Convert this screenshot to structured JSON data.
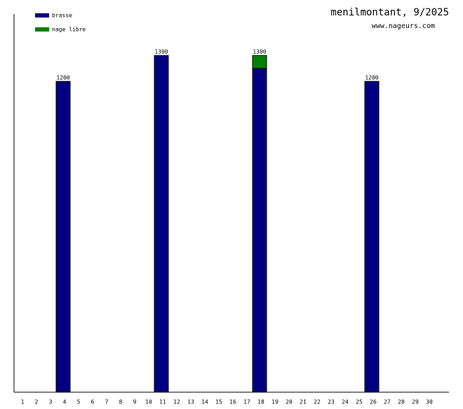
{
  "chart_data": {
    "type": "stacked-bar",
    "title": "menilmontant, 9/2025",
    "subtitle": "www.nageurs.com",
    "categories": [
      "1",
      "2",
      "3",
      "4",
      "5",
      "6",
      "7",
      "8",
      "9",
      "10",
      "11",
      "12",
      "13",
      "14",
      "15",
      "16",
      "17",
      "18",
      "19",
      "20",
      "21",
      "22",
      "23",
      "24",
      "25",
      "26",
      "27",
      "28",
      "29",
      "30"
    ],
    "series": [
      {
        "name": "brasse",
        "color": "#000080",
        "values": [
          null,
          null,
          null,
          1200,
          null,
          null,
          null,
          null,
          null,
          null,
          1300,
          null,
          null,
          null,
          null,
          null,
          null,
          1250,
          null,
          null,
          null,
          null,
          null,
          null,
          null,
          1200,
          null,
          null,
          null,
          null
        ]
      },
      {
        "name": "nage libre",
        "color": "#008000",
        "values": [
          null,
          null,
          null,
          null,
          null,
          null,
          null,
          null,
          null,
          null,
          null,
          null,
          null,
          null,
          null,
          null,
          null,
          50,
          null,
          null,
          null,
          null,
          null,
          null,
          null,
          null,
          null,
          null,
          null,
          null
        ]
      }
    ],
    "totals": [
      null,
      null,
      null,
      1200,
      null,
      null,
      null,
      null,
      null,
      null,
      1300,
      null,
      null,
      null,
      null,
      null,
      null,
      1300,
      null,
      null,
      null,
      null,
      null,
      null,
      null,
      1200,
      null,
      null,
      null,
      null
    ],
    "ylim": [
      0,
      1460
    ],
    "legend": "top-left"
  }
}
